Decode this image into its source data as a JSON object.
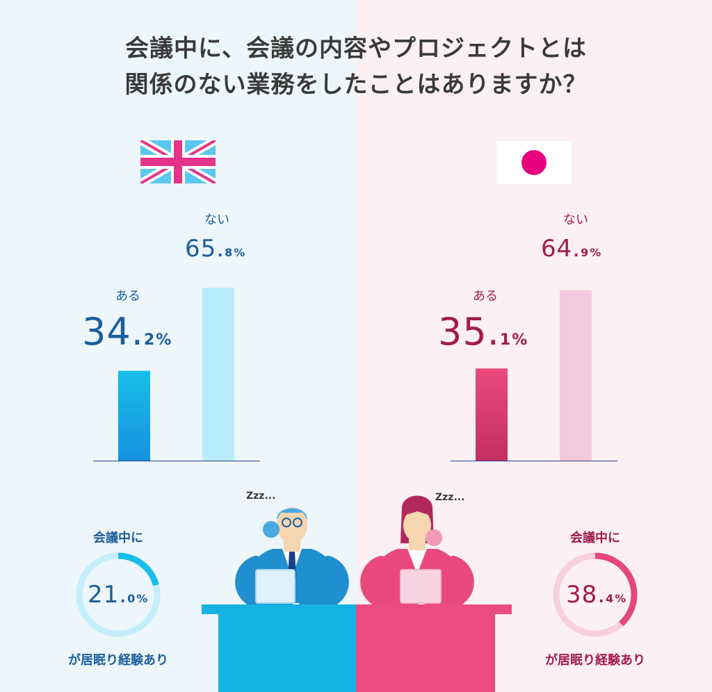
{
  "title": {
    "line1": "会議中に、会議の内容やプロジェクトとは",
    "line2": "関係のない業務をしたことはありますか？"
  },
  "colors": {
    "uk_bg": "#edf6fa",
    "jp_bg": "#fcf0f4",
    "uk_text": "#1a5e9c",
    "jp_text": "#a01c4e",
    "uk_bar_yes": "#1ab4e6",
    "uk_bar_no": "#b8ecfb",
    "jp_bar_yes": "#e5477b",
    "jp_bar_no": "#f6cade",
    "desk_uk": "#17b2e4",
    "desk_jp": "#ec4a82"
  },
  "uk": {
    "flag": "uk-flag-icon",
    "yes_label": "ある",
    "yes_int": "34.",
    "yes_dec": "2%",
    "no_label": "ない",
    "no_int": "65.",
    "no_dec": "8%",
    "ring_top": "会議中に",
    "ring_int": "21.",
    "ring_dec": "0%",
    "ring_bottom": "が居眠り経験あり"
  },
  "jp": {
    "flag": "japan-flag-icon",
    "yes_label": "ある",
    "yes_int": "35.",
    "yes_dec": "1%",
    "no_label": "ない",
    "no_int": "64.",
    "no_dec": "9%",
    "ring_top": "会議中に",
    "ring_int": "38.",
    "ring_dec": "4%",
    "ring_bottom": "が居眠り経験あり"
  },
  "sleep_text": "Zzz...",
  "chart_data": [
    {
      "type": "bar",
      "categories": [
        "ある",
        "ない"
      ],
      "values": [
        34.2,
        65.8
      ],
      "ylim": [
        0,
        100
      ]
    },
    {
      "type": "bar",
      "categories": [
        "ある",
        "ない"
      ],
      "values": [
        35.1,
        64.9
      ],
      "ylim": [
        0,
        100
      ]
    },
    {
      "type": "pie",
      "categories": [
        "が居眠り経験あり"
      ],
      "values": [
        21.0
      ]
    },
    {
      "type": "pie",
      "categories": [
        "が居眠り経験あり"
      ],
      "values": [
        38.4
      ]
    }
  ]
}
